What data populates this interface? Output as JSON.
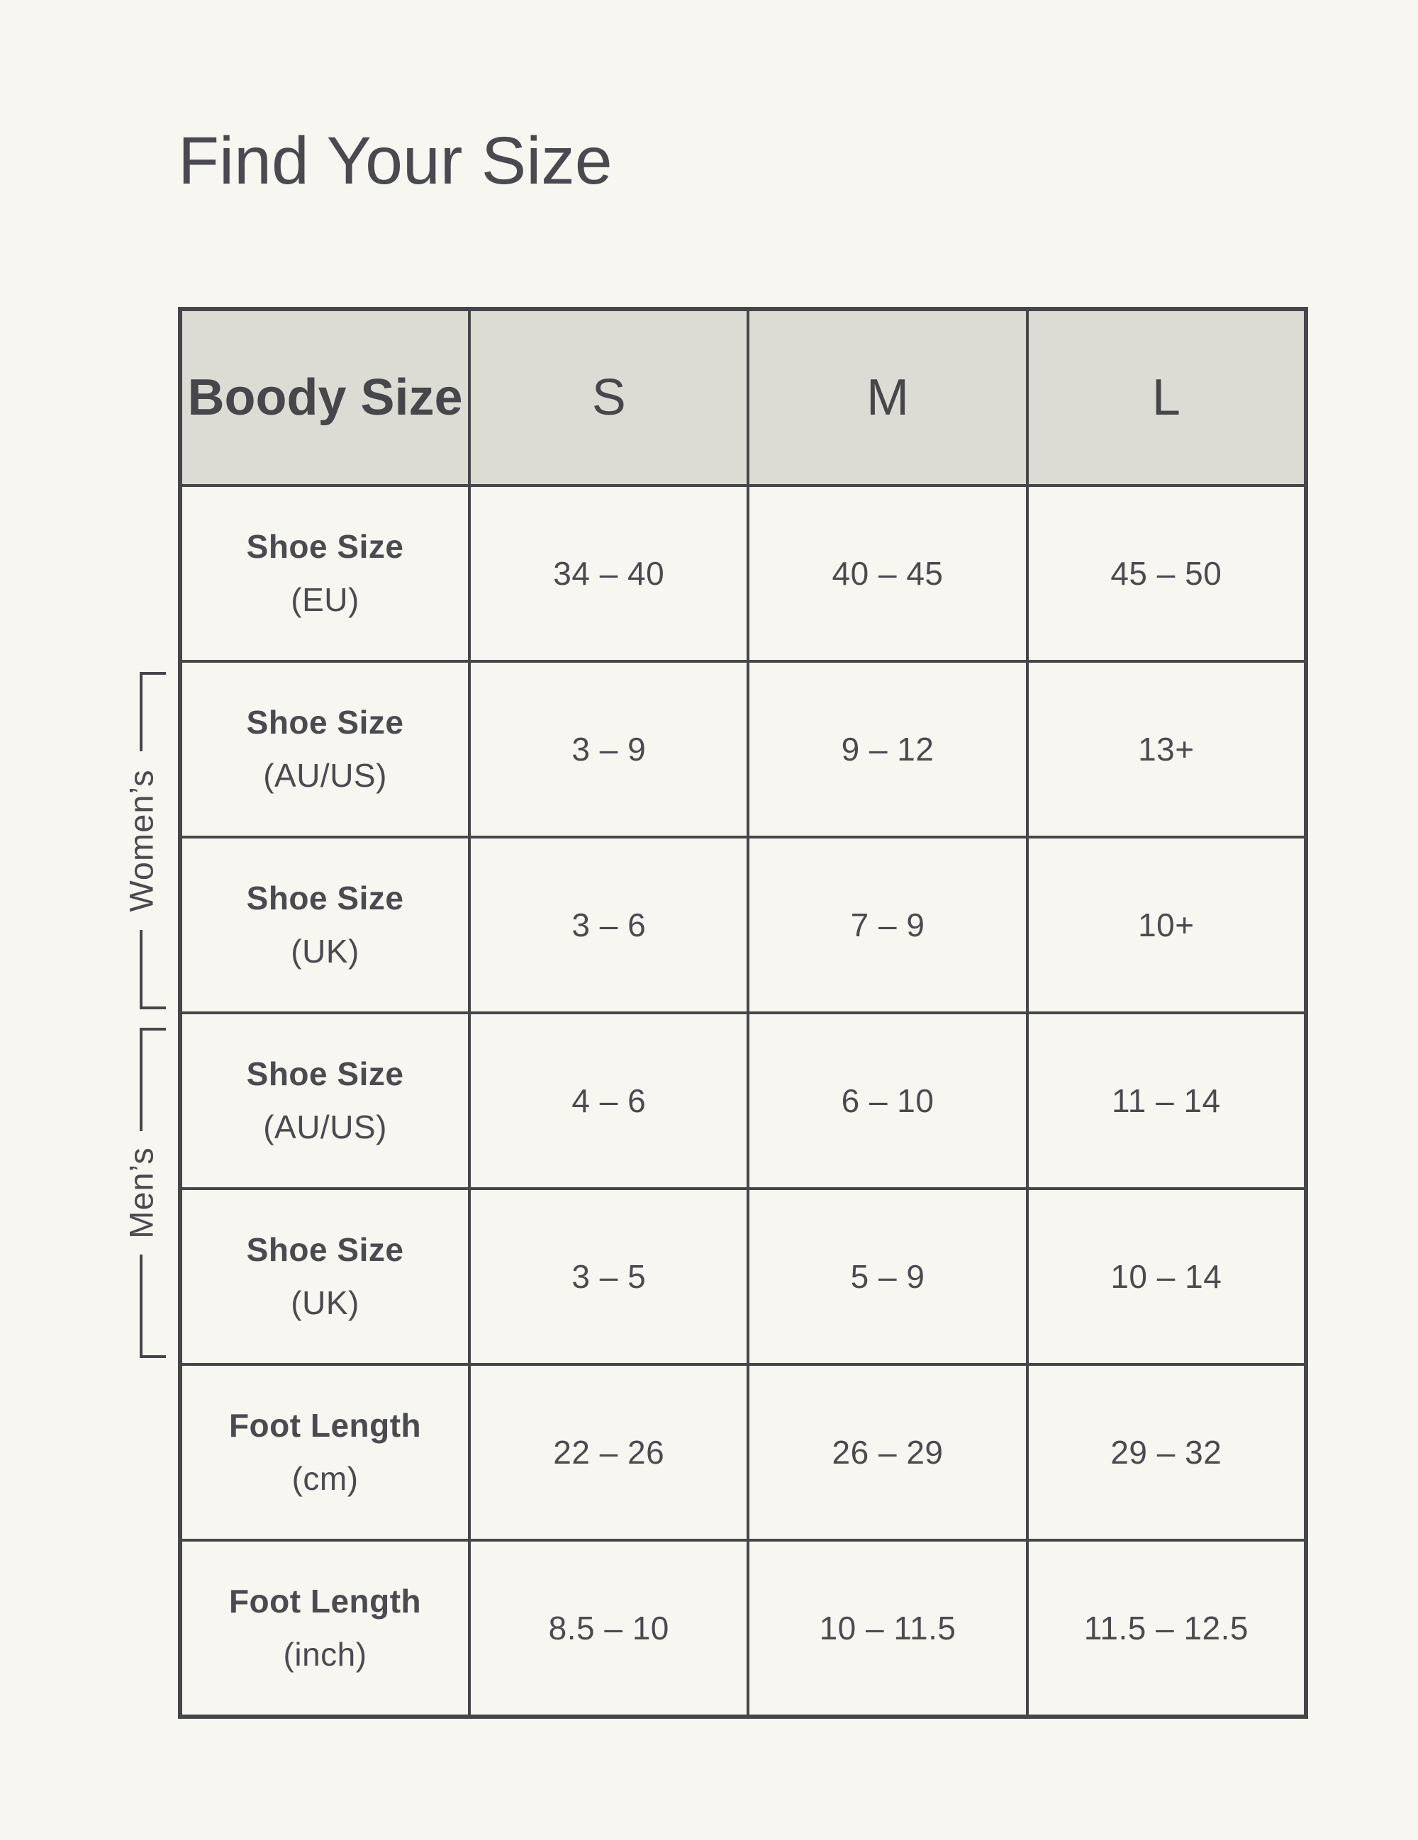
{
  "title": "Find Your Size",
  "colors": {
    "page_background": "#f7f6f1",
    "header_background": "#dcdcd4",
    "grid_line": "#46464a",
    "text": "#4b4a50"
  },
  "chart_data": {
    "type": "table",
    "title": "Find Your Size",
    "columns": [
      "Boody Size",
      "S",
      "M",
      "L"
    ],
    "rows": [
      {
        "label": "Shoe Size",
        "unit": "(EU)",
        "values": [
          "34 – 40",
          "40 – 45",
          "45 – 50"
        ]
      },
      {
        "label": "Shoe Size",
        "unit": "(AU/US)",
        "values": [
          "3 – 9",
          "9 – 12",
          "13+"
        ]
      },
      {
        "label": "Shoe Size",
        "unit": "(UK)",
        "values": [
          "3 – 6",
          "7 – 9",
          "10+"
        ]
      },
      {
        "label": "Shoe Size",
        "unit": "(AU/US)",
        "values": [
          "4 – 6",
          "6 – 10",
          "11 – 14"
        ]
      },
      {
        "label": "Shoe Size",
        "unit": "(UK)",
        "values": [
          "3 – 5",
          "5 – 9",
          "10 – 14"
        ]
      },
      {
        "label": "Foot Length",
        "unit": "(cm)",
        "values": [
          "22 – 26",
          "26 – 29",
          "29 – 32"
        ]
      },
      {
        "label": "Foot Length",
        "unit": "(inch)",
        "values": [
          "8.5 – 10",
          "10 – 11.5",
          "11.5 – 12.5"
        ]
      }
    ],
    "groups": [
      {
        "label": "Women’s",
        "row_indices": [
          1,
          2
        ]
      },
      {
        "label": "Men’s",
        "row_indices": [
          3,
          4
        ]
      }
    ],
    "legend_position": "none",
    "grid": true
  }
}
